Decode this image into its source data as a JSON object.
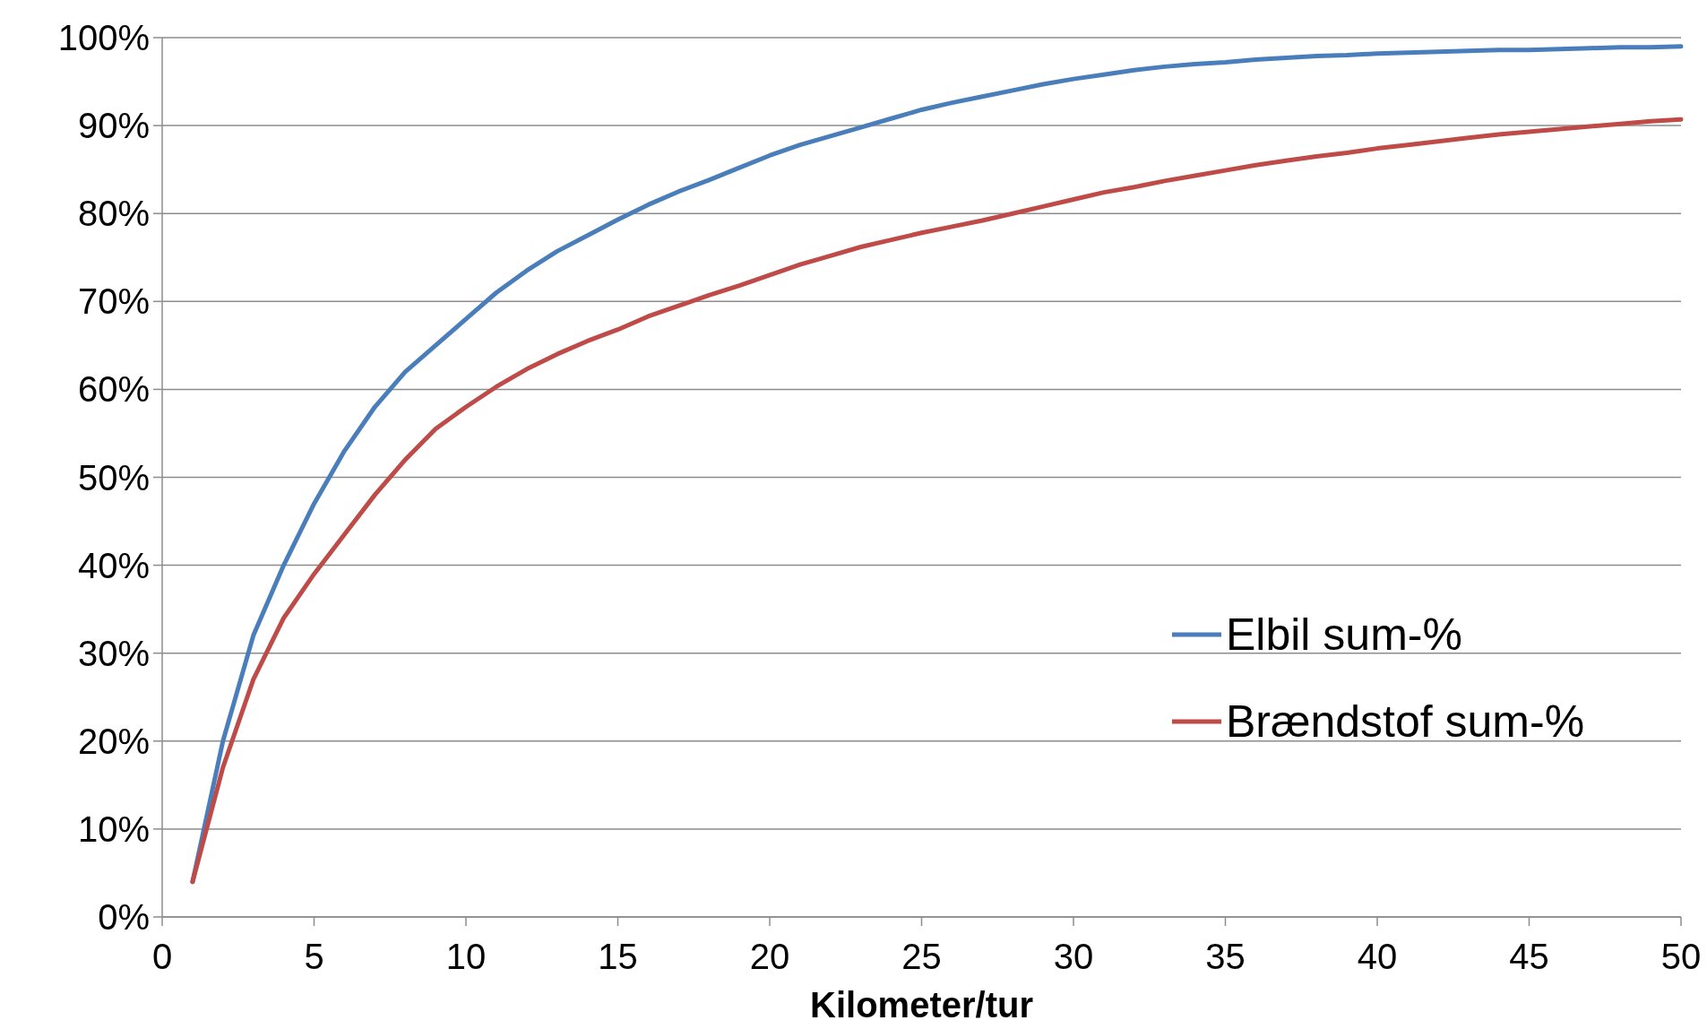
{
  "chart_data": {
    "type": "line",
    "xlabel": "Kilometer/tur",
    "x": [
      1,
      2,
      3,
      4,
      5,
      6,
      7,
      8,
      9,
      10,
      11,
      12,
      13,
      14,
      15,
      16,
      17,
      18,
      19,
      20,
      21,
      22,
      23,
      24,
      25,
      26,
      27,
      28,
      29,
      30,
      31,
      32,
      33,
      34,
      35,
      36,
      37,
      38,
      39,
      40,
      41,
      42,
      43,
      44,
      45,
      46,
      47,
      48,
      49,
      50
    ],
    "series": [
      {
        "name": "Elbil sum-%",
        "color": "#4a7ebb",
        "values": [
          4,
          20,
          32,
          40,
          47,
          53,
          58,
          62,
          65,
          68,
          71,
          73.5,
          75.7,
          77.5,
          79.3,
          81,
          82.5,
          83.8,
          85.2,
          86.6,
          87.8,
          88.8,
          89.8,
          90.8,
          91.8,
          92.6,
          93.3,
          94,
          94.7,
          95.3,
          95.8,
          96.3,
          96.7,
          97,
          97.2,
          97.5,
          97.7,
          97.9,
          98,
          98.2,
          98.3,
          98.4,
          98.5,
          98.6,
          98.6,
          98.7,
          98.8,
          98.9,
          98.9,
          99
        ]
      },
      {
        "name": "Brændstof sum-%",
        "color": "#be4b48",
        "values": [
          4,
          17,
          27,
          34,
          39,
          43.5,
          48,
          52,
          55.5,
          58,
          60.3,
          62.3,
          64,
          65.5,
          66.8,
          68.3,
          69.5,
          70.7,
          71.8,
          73,
          74.2,
          75.2,
          76.2,
          77,
          77.8,
          78.5,
          79.2,
          80,
          80.8,
          81.6,
          82.4,
          83,
          83.7,
          84.3,
          84.9,
          85.5,
          86,
          86.5,
          86.9,
          87.4,
          87.8,
          88.2,
          88.6,
          89,
          89.3,
          89.6,
          89.9,
          90.2,
          90.5,
          90.7
        ]
      }
    ],
    "xlim": [
      0,
      50
    ],
    "xticks": [
      0,
      5,
      10,
      15,
      20,
      25,
      30,
      35,
      40,
      45,
      50
    ],
    "ylim": [
      0,
      100
    ],
    "yticks": [
      {
        "value": 0,
        "label": "0%"
      },
      {
        "value": 10,
        "label": "10%"
      },
      {
        "value": 20,
        "label": "20%"
      },
      {
        "value": 30,
        "label": "30%"
      },
      {
        "value": 40,
        "label": "40%"
      },
      {
        "value": 50,
        "label": "50%"
      },
      {
        "value": 60,
        "label": "60%"
      },
      {
        "value": 70,
        "label": "70%"
      },
      {
        "value": 80,
        "label": "80%"
      },
      {
        "value": 90,
        "label": "90%"
      },
      {
        "value": 100,
        "label": "100%"
      }
    ],
    "grid": "y",
    "legend": "right",
    "marker": "none",
    "line_style": "solid"
  }
}
